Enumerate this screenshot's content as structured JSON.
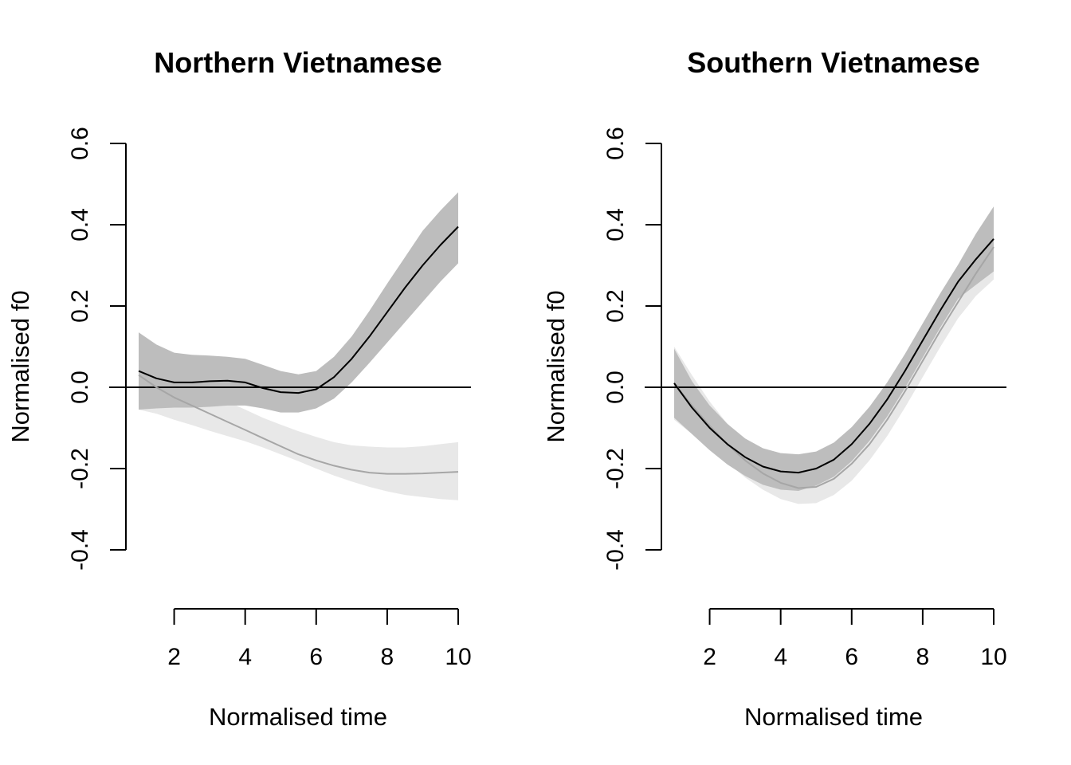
{
  "colors": {
    "background": "#ffffff",
    "axis": "#000000",
    "series_dark_line": "#000000",
    "series_dark_band": "#bdbdbd",
    "series_light_line": "#a6a6a6",
    "series_light_band": "#e8e8e8",
    "reference_line": "#000000"
  },
  "chart_data": [
    {
      "type": "line",
      "title": "Northern Vietnamese",
      "xlabel": "Normalised time",
      "ylabel": "Normalised f0",
      "xlim": [
        1,
        10
      ],
      "ylim": [
        -0.4,
        0.6
      ],
      "xticks": [
        "2",
        "4",
        "6",
        "8",
        "10"
      ],
      "yticks": [
        "-0.4",
        "-0.2",
        "0.0",
        "0.2",
        "0.4",
        "0.6"
      ],
      "reference_line": 0.0,
      "x": [
        1,
        1.5,
        2,
        2.5,
        3,
        3.5,
        4,
        4.5,
        5,
        5.5,
        6,
        6.5,
        7,
        7.5,
        8,
        8.5,
        9,
        9.5,
        10
      ],
      "series": [
        {
          "name": "light",
          "style": "light",
          "values": [
            0.03,
            0.0,
            -0.025,
            -0.045,
            -0.065,
            -0.085,
            -0.105,
            -0.125,
            -0.145,
            -0.165,
            -0.18,
            -0.193,
            -0.203,
            -0.21,
            -0.213,
            -0.213,
            -0.212,
            -0.21,
            -0.208
          ],
          "lower": [
            -0.055,
            -0.065,
            -0.08,
            -0.093,
            -0.107,
            -0.12,
            -0.133,
            -0.148,
            -0.165,
            -0.182,
            -0.2,
            -0.217,
            -0.232,
            -0.245,
            -0.256,
            -0.265,
            -0.27,
            -0.275,
            -0.278
          ],
          "upper": [
            0.115,
            0.06,
            0.02,
            0.0,
            -0.02,
            -0.035,
            -0.055,
            -0.075,
            -0.092,
            -0.108,
            -0.122,
            -0.135,
            -0.143,
            -0.146,
            -0.148,
            -0.148,
            -0.145,
            -0.14,
            -0.135
          ]
        },
        {
          "name": "dark",
          "style": "dark",
          "values": [
            0.04,
            0.022,
            0.012,
            0.012,
            0.015,
            0.016,
            0.012,
            -0.002,
            -0.012,
            -0.014,
            -0.005,
            0.025,
            0.07,
            0.125,
            0.185,
            0.245,
            0.3,
            0.35,
            0.395
          ],
          "lower": [
            -0.055,
            -0.052,
            -0.05,
            -0.05,
            -0.048,
            -0.045,
            -0.045,
            -0.052,
            -0.062,
            -0.062,
            -0.052,
            -0.028,
            0.012,
            0.06,
            0.11,
            0.16,
            0.21,
            0.26,
            0.305
          ],
          "upper": [
            0.135,
            0.105,
            0.085,
            0.08,
            0.078,
            0.075,
            0.07,
            0.055,
            0.04,
            0.032,
            0.04,
            0.075,
            0.125,
            0.188,
            0.255,
            0.32,
            0.385,
            0.435,
            0.48
          ]
        }
      ]
    },
    {
      "type": "line",
      "title": "Southern Vietnamese",
      "xlabel": "Normalised time",
      "ylabel": "Normalised f0",
      "xlim": [
        1,
        10
      ],
      "ylim": [
        -0.4,
        0.6
      ],
      "xticks": [
        "2",
        "4",
        "6",
        "8",
        "10"
      ],
      "yticks": [
        "-0.4",
        "-0.2",
        "0.0",
        "0.2",
        "0.4",
        "0.6"
      ],
      "reference_line": 0.0,
      "x": [
        1,
        1.5,
        2,
        2.5,
        3,
        3.5,
        4,
        4.5,
        5,
        5.5,
        6,
        6.5,
        7,
        7.5,
        8,
        8.5,
        9,
        9.5,
        10
      ],
      "series": [
        {
          "name": "light",
          "style": "light",
          "values": [
            0.01,
            -0.045,
            -0.095,
            -0.14,
            -0.18,
            -0.212,
            -0.235,
            -0.248,
            -0.245,
            -0.225,
            -0.188,
            -0.14,
            -0.08,
            -0.01,
            0.065,
            0.14,
            0.21,
            0.28,
            0.345
          ],
          "lower": [
            -0.08,
            -0.115,
            -0.15,
            -0.185,
            -0.222,
            -0.252,
            -0.275,
            -0.287,
            -0.285,
            -0.265,
            -0.23,
            -0.18,
            -0.12,
            -0.05,
            0.025,
            0.1,
            0.17,
            0.225,
            0.265
          ],
          "upper": [
            0.1,
            0.03,
            -0.035,
            -0.09,
            -0.135,
            -0.17,
            -0.195,
            -0.208,
            -0.205,
            -0.185,
            -0.148,
            -0.1,
            -0.04,
            0.03,
            0.105,
            0.18,
            0.25,
            0.335,
            0.425
          ]
        },
        {
          "name": "dark",
          "style": "dark",
          "values": [
            0.01,
            -0.05,
            -0.1,
            -0.14,
            -0.172,
            -0.195,
            -0.207,
            -0.21,
            -0.2,
            -0.178,
            -0.14,
            -0.09,
            -0.03,
            0.04,
            0.115,
            0.19,
            0.26,
            0.315,
            0.365
          ],
          "lower": [
            -0.075,
            -0.115,
            -0.155,
            -0.19,
            -0.218,
            -0.24,
            -0.252,
            -0.255,
            -0.242,
            -0.22,
            -0.182,
            -0.132,
            -0.072,
            -0.002,
            0.073,
            0.148,
            0.218,
            0.252,
            0.285
          ],
          "upper": [
            0.095,
            0.015,
            -0.045,
            -0.09,
            -0.126,
            -0.15,
            -0.162,
            -0.165,
            -0.158,
            -0.136,
            -0.098,
            -0.048,
            0.012,
            0.082,
            0.157,
            0.232,
            0.302,
            0.378,
            0.445
          ]
        }
      ]
    }
  ]
}
